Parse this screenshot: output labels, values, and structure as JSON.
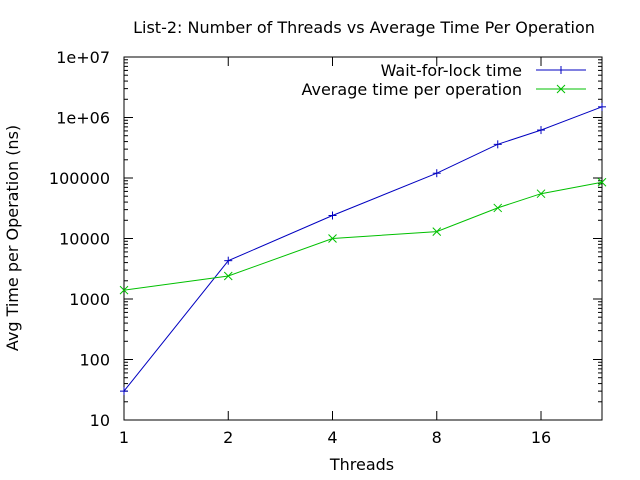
{
  "chart_data": {
    "type": "line",
    "title": "List-2: Number of Threads vs Average Time Per Operation",
    "xlabel": "Threads",
    "ylabel": "Avg Time per Operation (ns)",
    "x_scale": "log2",
    "y_scale": "log10",
    "xlim": [
      1,
      24
    ],
    "ylim": [
      10,
      10000000
    ],
    "x_ticks": [
      1,
      2,
      4,
      8,
      16
    ],
    "x_tick_labels": [
      "1",
      "2",
      "4",
      "8",
      "16"
    ],
    "y_ticks": [
      10,
      100,
      1000,
      10000,
      100000,
      1000000,
      10000000
    ],
    "y_tick_labels": [
      "10",
      "100",
      "1000",
      "10000",
      "100000",
      "1e+06",
      "1e+07"
    ],
    "grid": false,
    "legend_position": "top-right",
    "series": [
      {
        "name": "Wait-for-lock time",
        "color": "#0000c0",
        "marker": "plus",
        "x": [
          1,
          2,
          4,
          8,
          12,
          16,
          24
        ],
        "y": [
          30,
          4300,
          24000,
          120000,
          360000,
          620000,
          1500000
        ]
      },
      {
        "name": "Average time per operation",
        "color": "#00c000",
        "marker": "cross",
        "x": [
          1,
          2,
          4,
          8,
          12,
          16,
          24
        ],
        "y": [
          1400,
          2400,
          10000,
          13000,
          32000,
          55000,
          85000
        ]
      }
    ]
  }
}
